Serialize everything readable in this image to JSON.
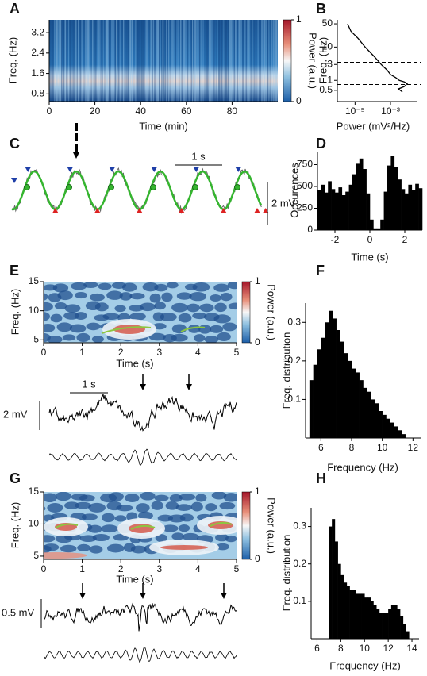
{
  "chart_data": [
    {
      "type": "heatmap",
      "panel": "A",
      "xlabel": "Time (min)",
      "ylabel": "Freq. (Hz)",
      "xlim": [
        0,
        100
      ],
      "xticks": [
        0,
        20,
        40,
        60,
        80
      ],
      "ylim": [
        0.5,
        3.7
      ],
      "yticks": [
        0.8,
        1.6,
        2.4,
        3.2
      ],
      "colorbar_label": "Power (a.u.)",
      "colorbar_lim": [
        0,
        1
      ],
      "colorbar_ticks": [
        0,
        1
      ]
    },
    {
      "type": "line",
      "panel": "B",
      "xlabel": "Power (mV²/Hz)",
      "ylabel": "Freq. (Hz)",
      "xlog": true,
      "ylog": true,
      "x": [
        3.8e-06,
        5.8e-06,
        1.5e-05,
        3.7e-05,
        0.00013,
        0.0003,
        0.00066,
        0.001,
        0.002,
        0.0031,
        0.006,
        0.0088,
        0.006,
        0.0028,
        0.0047
      ],
      "values": [
        50,
        30,
        18,
        10,
        5,
        3,
        2,
        1.5,
        1.2,
        1,
        0.9,
        0.8,
        0.65,
        0.55,
        0.45
      ],
      "color": "#000000",
      "hlines": [
        3.5,
        0.75
      ],
      "xlim": [
        1e-06,
        0.03
      ],
      "xticks": [
        {
          "value": 1e-05,
          "label": "10⁻⁵"
        },
        {
          "value": 0.001,
          "label": "10⁻³"
        }
      ],
      "ylim": [
        0.23,
        66
      ],
      "yticks": [
        0.5,
        1,
        3,
        10,
        50
      ]
    },
    {
      "type": "trace",
      "panel": "C",
      "scalebar_x": "1 s",
      "scalebar_y": "2 mV"
    },
    {
      "type": "histogram",
      "panel": "D",
      "xlabel": "Time (s)",
      "ylabel": "Occurences",
      "color": "#000000",
      "bins": [
        -3,
        -2.8,
        -2.6,
        -2.4,
        -2.2,
        -2,
        -1.8,
        -1.6,
        -1.4,
        -1.2,
        -1,
        -0.8,
        -0.6,
        -0.4,
        -0.2,
        0,
        0.2,
        0.4,
        0.6,
        0.8,
        1,
        1.2,
        1.4,
        1.6,
        1.8,
        2,
        2.2,
        2.4,
        2.6,
        2.8,
        3
      ],
      "values": [
        460,
        520,
        430,
        560,
        470,
        430,
        490,
        400,
        440,
        520,
        640,
        760,
        820,
        700,
        420,
        120,
        20,
        20,
        120,
        440,
        740,
        850,
        720,
        580,
        470,
        420,
        520,
        460,
        530,
        480
      ],
      "xlim": [
        -3,
        3
      ],
      "xticks": [
        -2,
        0,
        2
      ],
      "ylim": [
        0,
        900
      ],
      "yticks": [
        0,
        250,
        500,
        750
      ]
    },
    {
      "type": "heatmap",
      "panel": "E",
      "xlabel": "Time (s)",
      "ylabel": "Freq. (Hz)",
      "xlim": [
        0,
        5
      ],
      "xticks": [
        0,
        1,
        2,
        3,
        4,
        5
      ],
      "ylim": [
        4.5,
        15
      ],
      "yticks": [
        5,
        10,
        15
      ],
      "colorbar_label": "Power (a.u.)",
      "colorbar_lim": [
        0,
        1
      ],
      "colorbar_ticks": [
        0,
        1
      ]
    },
    {
      "type": "trace",
      "scalebar_x": "1 s",
      "scalebar_y": "2 mV"
    },
    {
      "type": "histogram",
      "panel": "F",
      "xlabel": "Frequency (Hz)",
      "ylabel": "Freq. distribution",
      "color": "#000000",
      "bins": [
        5.25,
        5.5,
        5.75,
        6,
        6.25,
        6.5,
        6.75,
        7,
        7.25,
        7.5,
        7.75,
        8,
        8.25,
        8.5,
        8.75,
        9,
        9.25,
        9.5,
        9.75,
        10,
        10.25,
        10.5,
        10.75,
        11,
        11.25,
        11.5
      ],
      "values": [
        0.15,
        0.19,
        0.23,
        0.26,
        0.3,
        0.33,
        0.31,
        0.28,
        0.25,
        0.22,
        0.2,
        0.18,
        0.17,
        0.15,
        0.13,
        0.12,
        0.1,
        0.09,
        0.07,
        0.06,
        0.05,
        0.04,
        0.03,
        0.02,
        0.01
      ],
      "xlim": [
        5,
        12.5
      ],
      "xticks": [
        6,
        8,
        10,
        12
      ],
      "ylim": [
        0,
        0.35
      ],
      "yticks": [
        0.1,
        0.2,
        0.3
      ]
    },
    {
      "type": "heatmap",
      "panel": "G",
      "xlabel": "Time (s)",
      "ylabel": "Freq. (Hz)",
      "xlim": [
        0,
        5
      ],
      "xticks": [
        0,
        1,
        2,
        3,
        4,
        5
      ],
      "ylim": [
        4.5,
        15
      ],
      "yticks": [
        5,
        10,
        15
      ],
      "colorbar_label": "Power (a.u.)",
      "colorbar_lim": [
        0,
        1
      ],
      "colorbar_ticks": [
        0,
        1
      ]
    },
    {
      "type": "trace",
      "scalebar_y": "0.5 mV"
    },
    {
      "type": "histogram",
      "panel": "H",
      "xlabel": "Frequency (Hz)",
      "ylabel": "Freq. distribution",
      "color": "#000000",
      "bins": [
        7,
        7.25,
        7.5,
        7.75,
        8,
        8.25,
        8.5,
        8.75,
        9,
        9.25,
        9.5,
        9.75,
        10,
        10.25,
        10.5,
        10.75,
        11,
        11.25,
        11.5,
        11.75,
        12,
        12.25,
        12.5,
        12.75,
        13,
        13.25,
        13.5,
        13.75
      ],
      "values": [
        0.3,
        0.32,
        0.26,
        0.2,
        0.17,
        0.15,
        0.14,
        0.13,
        0.13,
        0.12,
        0.12,
        0.12,
        0.11,
        0.11,
        0.1,
        0.09,
        0.08,
        0.07,
        0.07,
        0.07,
        0.08,
        0.09,
        0.09,
        0.08,
        0.06,
        0.04,
        0.02
      ],
      "xlim": [
        5.5,
        14.6
      ],
      "xticks": [
        6,
        8,
        10,
        12,
        14
      ],
      "ylim": [
        0,
        0.35
      ],
      "yticks": [
        0.1,
        0.2,
        0.3
      ]
    }
  ]
}
